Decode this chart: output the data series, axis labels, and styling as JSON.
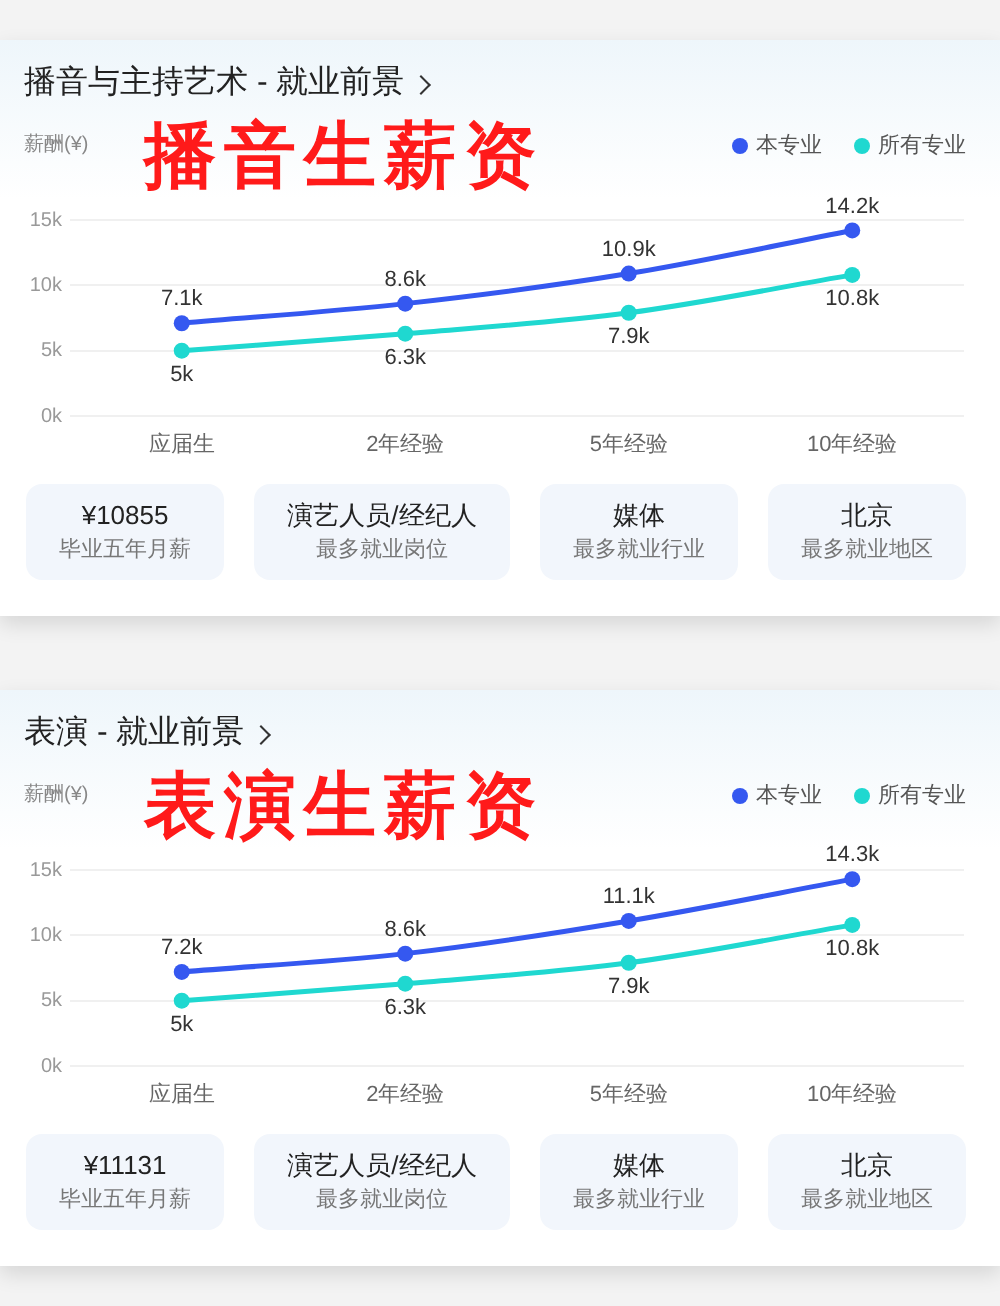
{
  "chart_data": [
    {
      "type": "line",
      "title": "播音与主持艺术 - 就业前景",
      "subtitle": "播音生薪资",
      "ylabel": "薪酬(¥)",
      "categories": [
        "应届生",
        "2年经验",
        "5年经验",
        "10年经验"
      ],
      "series": [
        {
          "name": "本专业",
          "color": "#3558f0",
          "values": [
            7.1,
            8.6,
            10.9,
            14.2
          ],
          "value_labels": [
            "7.1k",
            "8.6k",
            "10.9k",
            "14.2k"
          ]
        },
        {
          "name": "所有专业",
          "color": "#1fd8d0",
          "values": [
            5,
            6.3,
            7.9,
            10.8
          ],
          "value_labels": [
            "5k",
            "6.3k",
            "7.9k",
            "10.8k"
          ]
        }
      ],
      "ylim": [
        0,
        15
      ],
      "yticks": [
        {
          "value": 0,
          "label": "0k"
        },
        {
          "value": 5,
          "label": "5k"
        },
        {
          "value": 10,
          "label": "10k"
        },
        {
          "value": 15,
          "label": "15k"
        }
      ],
      "grid": "y",
      "legend": "top right",
      "marker": "circle"
    },
    {
      "type": "other",
      "annotations": [
        "¥10855",
        "毕业五年月薪",
        "演艺人员/经纪人",
        "最多就业岗位",
        "媒体",
        "最多就业行业",
        "北京",
        "最多就业地区"
      ]
    },
    {
      "type": "line",
      "title": "表演 - 就业前景",
      "subtitle": "表演生薪资",
      "ylabel": "薪酬(¥)",
      "categories": [
        "应届生",
        "2年经验",
        "5年经验",
        "10年经验"
      ],
      "series": [
        {
          "name": "本专业",
          "color": "#3558f0",
          "values": [
            7.2,
            8.6,
            11.1,
            14.3
          ],
          "value_labels": [
            "7.2k",
            "8.6k",
            "11.1k",
            "14.3k"
          ]
        },
        {
          "name": "所有专业",
          "color": "#1fd8d0",
          "values": [
            5,
            6.3,
            7.9,
            10.8
          ],
          "value_labels": [
            "5k",
            "6.3k",
            "7.9k",
            "10.8k"
          ]
        }
      ],
      "ylim": [
        0,
        15
      ],
      "yticks": [
        {
          "value": 0,
          "label": "0k"
        },
        {
          "value": 5,
          "label": "5k"
        },
        {
          "value": 10,
          "label": "10k"
        },
        {
          "value": 15,
          "label": "15k"
        }
      ],
      "grid": "y",
      "legend": "top right",
      "marker": "circle"
    },
    {
      "type": "other",
      "annotations": [
        "¥11131",
        "毕业五年月薪",
        "演艺人员/经纪人",
        "最多就业岗位",
        "媒体",
        "最多就业行业",
        "北京",
        "最多就业地区"
      ]
    }
  ]
}
